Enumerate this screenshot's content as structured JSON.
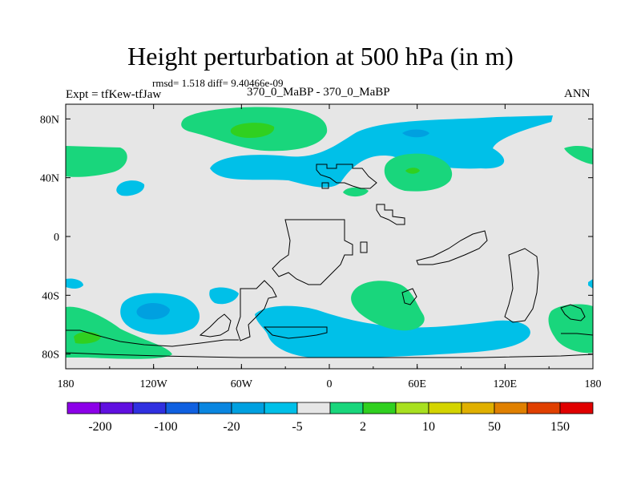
{
  "header": {
    "title": "Height perturbation at 500 hPa (in m)",
    "stats": "rmsd= 1.518 diff= 9.40466e-09",
    "left_label": "Expt = tfKew-tfJaw",
    "center_label": "370_0_MaBP - 370_0_MaBP",
    "right_label": "ANN"
  },
  "map": {
    "projection": "cylindrical equidistant",
    "lon_range": [
      -180,
      180
    ],
    "lat_range": [
      -90,
      90
    ],
    "lon_ticks": [
      "180",
      "120W",
      "60W",
      "0",
      "60E",
      "120E",
      "180"
    ],
    "lat_ticks": [
      "80N",
      "40N",
      "0",
      "40S",
      "80S"
    ],
    "background_color": "#e6e6e6",
    "fill_colors": {
      "light_blue": "#00c0e8",
      "mid_blue": "#00a0e0",
      "light_green": "#19d67c",
      "green": "#30d020"
    }
  },
  "colorbar": {
    "labels": [
      "-200",
      "-100",
      "-20",
      "-5",
      "2",
      "10",
      "50",
      "150"
    ],
    "colors": [
      "#8c00e8",
      "#6010e0",
      "#3030e0",
      "#1060e0",
      "#0a86e0",
      "#00a0e0",
      "#00c0e8",
      "#e6e6e6",
      "#19d67c",
      "#30d020",
      "#a8e020",
      "#d4d400",
      "#e0b000",
      "#e08000",
      "#e04000",
      "#e00000"
    ]
  }
}
